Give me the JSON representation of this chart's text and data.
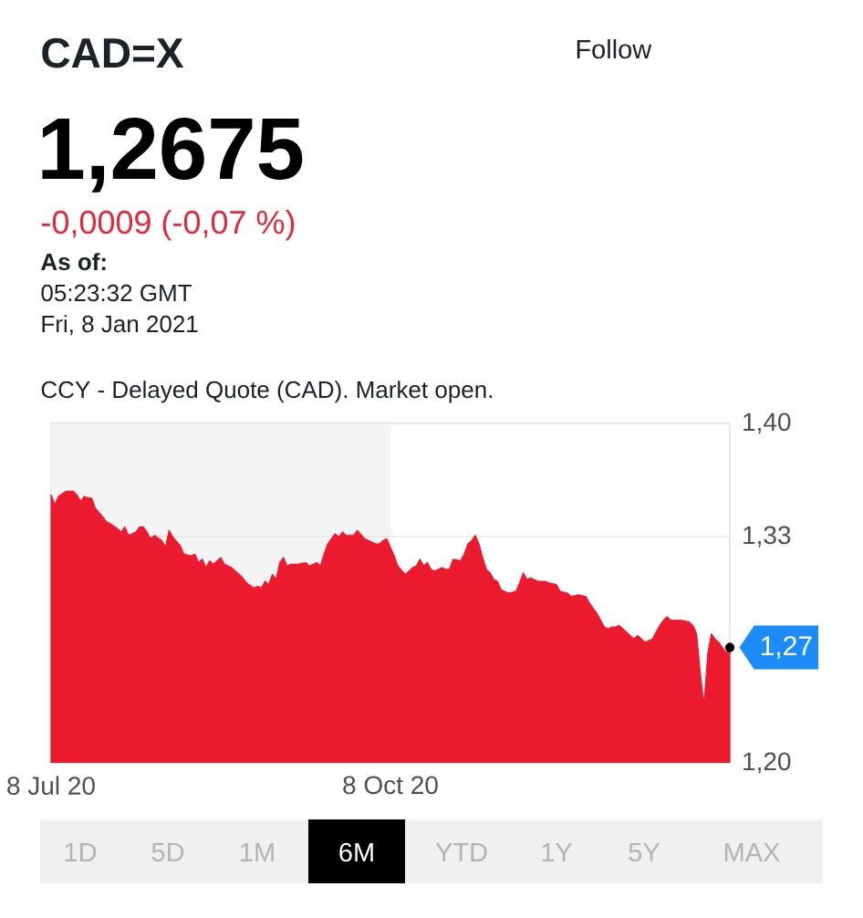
{
  "chart_data": {
    "type": "area",
    "title": "CAD=X",
    "subtitle": "1,2675",
    "x": [
      "2020-07-08",
      "2020-07-09",
      "2020-07-10",
      "2020-07-12",
      "2020-07-14",
      "2020-07-15",
      "2020-07-16",
      "2020-07-17",
      "2020-07-18",
      "2020-07-19",
      "2020-07-20",
      "2020-07-22",
      "2020-07-23",
      "2020-07-24",
      "2020-07-26",
      "2020-07-27",
      "2020-07-28",
      "2020-07-29",
      "2020-07-31",
      "2020-08-01",
      "2020-08-02",
      "2020-08-03",
      "2020-08-04",
      "2020-08-05",
      "2020-08-07",
      "2020-08-08",
      "2020-08-09",
      "2020-08-10",
      "2020-08-12",
      "2020-08-13",
      "2020-08-15",
      "2020-08-16",
      "2020-08-17",
      "2020-08-18",
      "2020-08-19",
      "2020-08-20",
      "2020-08-21",
      "2020-08-23",
      "2020-08-24",
      "2020-08-26",
      "2020-08-27",
      "2020-08-29",
      "2020-08-30",
      "2020-09-01",
      "2020-09-02",
      "2020-09-03",
      "2020-09-04",
      "2020-09-05",
      "2020-09-06",
      "2020-09-07",
      "2020-09-08",
      "2020-09-09",
      "2020-09-10",
      "2020-09-11",
      "2020-09-13",
      "2020-09-15",
      "2020-09-16",
      "2020-09-18",
      "2020-09-19",
      "2020-09-20",
      "2020-09-21",
      "2020-09-23",
      "2020-09-24",
      "2020-09-25",
      "2020-09-26",
      "2020-09-28",
      "2020-09-29",
      "2020-10-01",
      "2020-10-02",
      "2020-10-04",
      "2020-10-05",
      "2020-10-06",
      "2020-10-07",
      "2020-10-08",
      "2020-10-09",
      "2020-10-10",
      "2020-10-12",
      "2020-10-13",
      "2020-10-14",
      "2020-10-15",
      "2020-10-16",
      "2020-10-17",
      "2020-10-18",
      "2020-10-19",
      "2020-10-20",
      "2020-10-22",
      "2020-10-23",
      "2020-10-24",
      "2020-10-25",
      "2020-10-27",
      "2020-10-28",
      "2020-10-29",
      "2020-10-30",
      "2020-10-31",
      "2020-11-01",
      "2020-11-02",
      "2020-11-03",
      "2020-11-04",
      "2020-11-05",
      "2020-11-06",
      "2020-11-07",
      "2020-11-09",
      "2020-11-11",
      "2020-11-12",
      "2020-11-13",
      "2020-11-14",
      "2020-11-15",
      "2020-11-17",
      "2020-11-19",
      "2020-11-20",
      "2020-11-22",
      "2020-11-23",
      "2020-11-25",
      "2020-11-26",
      "2020-11-28",
      "2020-11-30",
      "2020-12-01",
      "2020-12-02",
      "2020-12-03",
      "2020-12-05",
      "2020-12-06",
      "2020-12-07",
      "2020-12-08",
      "2020-12-09",
      "2020-12-11",
      "2020-12-12",
      "2020-12-13",
      "2020-12-14",
      "2020-12-16",
      "2020-12-17",
      "2020-12-18",
      "2020-12-20",
      "2020-12-21",
      "2020-12-22",
      "2020-12-23",
      "2020-12-24",
      "2020-12-26",
      "2020-12-28",
      "2020-12-29",
      "2020-12-30",
      "2020-12-31",
      "2021-01-01",
      "2021-01-02",
      "2021-01-03",
      "2021-01-04",
      "2021-01-05",
      "2021-01-06",
      "2021-01-07",
      "2021-01-08"
    ],
    "series": [
      {
        "color": "#ec1a2e",
        "values": [
          1.358,
          1.352,
          1.357,
          1.36,
          1.36,
          1.358,
          1.354,
          1.357,
          1.356,
          1.356,
          1.35,
          1.345,
          1.342,
          1.341,
          1.338,
          1.336,
          1.339,
          1.334,
          1.336,
          1.339,
          1.339,
          1.336,
          1.332,
          1.334,
          1.331,
          1.327,
          1.337,
          1.333,
          1.328,
          1.323,
          1.322,
          1.323,
          1.318,
          1.32,
          1.315,
          1.319,
          1.317,
          1.321,
          1.317,
          1.315,
          1.313,
          1.309,
          1.306,
          1.303,
          1.304,
          1.303,
          1.307,
          1.305,
          1.311,
          1.308,
          1.318,
          1.321,
          1.316,
          1.317,
          1.317,
          1.318,
          1.316,
          1.318,
          1.316,
          1.323,
          1.329,
          1.335,
          1.333,
          1.336,
          1.334,
          1.334,
          1.337,
          1.332,
          1.331,
          1.329,
          1.329,
          1.331,
          1.332,
          1.327,
          1.322,
          1.316,
          1.311,
          1.313,
          1.315,
          1.316,
          1.32,
          1.316,
          1.318,
          1.314,
          1.313,
          1.315,
          1.314,
          1.314,
          1.32,
          1.319,
          1.323,
          1.329,
          1.331,
          1.334,
          1.329,
          1.321,
          1.314,
          1.312,
          1.308,
          1.307,
          1.302,
          1.3,
          1.301,
          1.306,
          1.312,
          1.308,
          1.309,
          1.307,
          1.307,
          1.306,
          1.305,
          1.301,
          1.3,
          1.298,
          1.299,
          1.298,
          1.294,
          1.291,
          1.288,
          1.28,
          1.279,
          1.28,
          1.28,
          1.281,
          1.277,
          1.275,
          1.273,
          1.275,
          1.271,
          1.272,
          1.273,
          1.281,
          1.284,
          1.286,
          1.284,
          1.284,
          1.284,
          1.283,
          1.281,
          1.276,
          1.253,
          1.234,
          1.264,
          1.276,
          1.273,
          1.271,
          1.268,
          1.265,
          1.268
        ]
      },
      {
        "type": "scatter",
        "x": [
          "2021-01-08"
        ],
        "values": [
          1.268
        ],
        "color": "#000000",
        "marker": "circle"
      }
    ],
    "xlim": [
      "2020-07-08",
      "2021-01-08"
    ],
    "xticks": [
      {
        "value": "2020-07-08",
        "label": "8 Jul 20"
      },
      {
        "value": "2020-10-08",
        "label": "8 Oct 20"
      }
    ],
    "ylim": [
      1.2,
      1.4
    ],
    "yticks": [
      {
        "value": 1.2,
        "label": "1,20"
      },
      {
        "value": 1.3333,
        "label": "1,33"
      },
      {
        "value": 1.4,
        "label": "1,40"
      }
    ],
    "grid": "y",
    "bands": [
      {
        "axis": "x",
        "from": "2020-07-08",
        "to": "2020-10-08",
        "color": "#f4f4f4"
      }
    ],
    "annotations": [
      "-0,0009 (-0,07 %)",
      "As of:",
      "05:23:32 GMT",
      "Fri, 8 Jan 2021",
      "CCY - Delayed Quote (CAD). Market open.",
      "Follow",
      "1D",
      "5D",
      "1M",
      "6M",
      "YTD",
      "1Y",
      "5Y",
      "MAX",
      {
        "text": "1,27",
        "x": "2021-01-08",
        "y": 1.268
      }
    ]
  }
}
